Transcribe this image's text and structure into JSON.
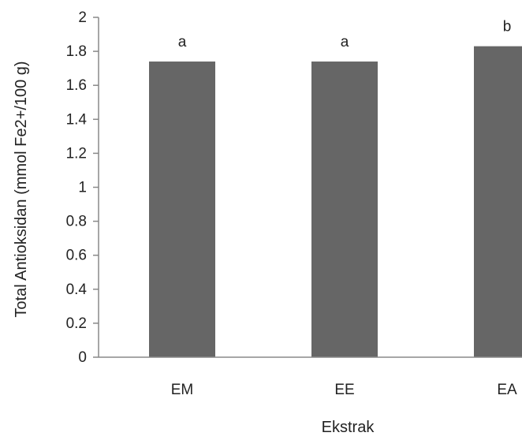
{
  "chart_data": {
    "type": "bar",
    "categories": [
      "EM",
      "EE",
      "EA"
    ],
    "values": [
      1.74,
      1.74,
      1.83
    ],
    "data_labels": [
      "a",
      "a",
      "b"
    ],
    "xlabel": "Ekstrak",
    "ylabel": "Total Antioksidan  (mmol Fe2+/100 g)",
    "ylim": [
      0,
      2
    ],
    "yticks": [
      "0",
      "0.2",
      "0.4",
      "0.6",
      "0.8",
      "1",
      "1.2",
      "1.4",
      "1.6",
      "1.8",
      "2"
    ],
    "grid": false,
    "legend": "none",
    "bar_color": "#666666",
    "axis_color": "#888888"
  }
}
